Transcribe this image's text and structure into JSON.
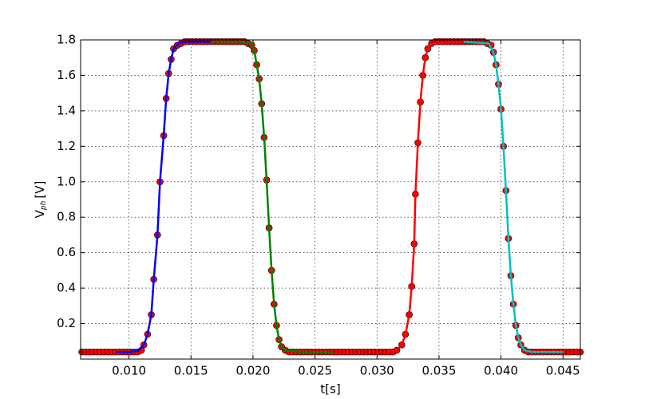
{
  "chart_data": {
    "type": "line",
    "xlabel": "t[s]",
    "ylabel": {
      "text": "V",
      "subscript": "ph",
      "suffix": "[V]"
    },
    "xlim": [
      0.0061,
      0.0464
    ],
    "ylim": [
      0,
      1.8
    ],
    "xticks": [
      {
        "value": 0.01,
        "label": "0.010"
      },
      {
        "value": 0.015,
        "label": "0.015"
      },
      {
        "value": 0.02,
        "label": "0.020"
      },
      {
        "value": 0.025,
        "label": "0.025"
      },
      {
        "value": 0.03,
        "label": "0.030"
      },
      {
        "value": 0.035,
        "label": "0.035"
      },
      {
        "value": 0.04,
        "label": "0.040"
      },
      {
        "value": 0.045,
        "label": "0.045"
      }
    ],
    "yticks": [
      0.2,
      0.4,
      0.6,
      0.8,
      {
        "value": 1.0,
        "label": "1.0"
      },
      1.2,
      1.4,
      1.6,
      1.8
    ],
    "grid": true,
    "series": [
      {
        "style": "line",
        "color": "#0000ff",
        "x": [
          0.009,
          0.01,
          0.0108,
          0.0112,
          0.0115,
          0.0118,
          0.012,
          0.0123,
          0.0125,
          0.0128,
          0.013,
          0.0132,
          0.0134,
          0.0136,
          0.014,
          0.0145,
          0.0166
        ],
        "values": [
          0.04,
          0.04,
          0.05,
          0.08,
          0.14,
          0.25,
          0.45,
          0.7,
          1.0,
          1.26,
          1.47,
          1.61,
          1.69,
          1.75,
          1.78,
          1.79,
          1.79
        ]
      },
      {
        "style": "line",
        "color": "#008000",
        "x": [
          0.0166,
          0.019,
          0.0199,
          0.0201,
          0.0203,
          0.0205,
          0.0207,
          0.0209,
          0.0211,
          0.0213,
          0.0215,
          0.0217,
          0.0219,
          0.0221,
          0.0223,
          0.0226,
          0.024,
          0.0265
        ],
        "values": [
          1.79,
          1.79,
          1.78,
          1.74,
          1.66,
          1.58,
          1.44,
          1.25,
          1.01,
          0.74,
          0.5,
          0.31,
          0.19,
          0.11,
          0.07,
          0.05,
          0.04,
          0.04
        ]
      },
      {
        "style": "line",
        "color": "#ff0000",
        "x": [
          0.0308,
          0.0316,
          0.032,
          0.0323,
          0.0326,
          0.0328,
          0.033,
          0.0331,
          0.0333,
          0.0335,
          0.0337,
          0.0339,
          0.0341,
          0.0344,
          0.037
        ],
        "values": [
          0.04,
          0.05,
          0.08,
          0.14,
          0.25,
          0.41,
          0.65,
          0.93,
          1.22,
          1.45,
          1.6,
          1.7,
          1.75,
          1.78,
          1.79
        ]
      },
      {
        "style": "line",
        "color": "#00bfbf",
        "x": [
          0.037,
          0.039,
          0.0394,
          0.0396,
          0.0398,
          0.04,
          0.0402,
          0.0404,
          0.0406,
          0.0408,
          0.041,
          0.0412,
          0.0414,
          0.0416,
          0.0419,
          0.0425,
          0.045
        ],
        "values": [
          1.79,
          1.78,
          1.73,
          1.66,
          1.55,
          1.41,
          1.2,
          0.95,
          0.68,
          0.47,
          0.31,
          0.19,
          0.12,
          0.08,
          0.05,
          0.04,
          0.04
        ]
      },
      {
        "style": "markers",
        "color": "#ff0000",
        "x": [
          0.0062,
          0.0065,
          0.0068,
          0.0071,
          0.0074,
          0.0077,
          0.008,
          0.0083,
          0.0086,
          0.0089,
          0.0092,
          0.0095,
          0.0098,
          0.0101,
          0.0104,
          0.0107,
          0.011,
          0.0112,
          0.0115,
          0.0118,
          0.012,
          0.0123,
          0.0125,
          0.0128,
          0.013,
          0.0132,
          0.0134,
          0.0136,
          0.0139,
          0.0142,
          0.0145,
          0.0148,
          0.0151,
          0.0154,
          0.0157,
          0.016,
          0.0163,
          0.0166,
          0.0169,
          0.0172,
          0.0175,
          0.0178,
          0.0181,
          0.0184,
          0.0187,
          0.019,
          0.0193,
          0.0196,
          0.0199,
          0.0201,
          0.0203,
          0.0205,
          0.0207,
          0.0209,
          0.0211,
          0.0213,
          0.0215,
          0.0217,
          0.0219,
          0.0221,
          0.0223,
          0.0226,
          0.0229,
          0.0232,
          0.0235,
          0.0238,
          0.0241,
          0.0244,
          0.0247,
          0.025,
          0.0253,
          0.0256,
          0.0259,
          0.0262,
          0.0265,
          0.0268,
          0.0271,
          0.0274,
          0.0277,
          0.028,
          0.0283,
          0.0286,
          0.0289,
          0.0292,
          0.0295,
          0.0298,
          0.0301,
          0.0304,
          0.0307,
          0.031,
          0.0313,
          0.0316,
          0.032,
          0.0323,
          0.0326,
          0.0328,
          0.033,
          0.0331,
          0.0333,
          0.0335,
          0.0337,
          0.0339,
          0.0341,
          0.0344,
          0.0347,
          0.035,
          0.0353,
          0.0356,
          0.0359,
          0.0362,
          0.0365,
          0.0368,
          0.0371,
          0.0374,
          0.0377,
          0.038,
          0.0383,
          0.0386,
          0.0389,
          0.0392,
          0.0394,
          0.0396,
          0.0398,
          0.04,
          0.0402,
          0.0404,
          0.0406,
          0.0408,
          0.041,
          0.0412,
          0.0414,
          0.0416,
          0.0419,
          0.0422,
          0.0425,
          0.0428,
          0.0431,
          0.0434,
          0.0437,
          0.044,
          0.0443,
          0.0446,
          0.0449,
          0.0452,
          0.0455,
          0.0458,
          0.0461,
          0.0464
        ],
        "values": [
          0.04,
          0.04,
          0.04,
          0.04,
          0.04,
          0.04,
          0.04,
          0.04,
          0.04,
          0.04,
          0.04,
          0.04,
          0.04,
          0.04,
          0.04,
          0.04,
          0.05,
          0.08,
          0.14,
          0.25,
          0.45,
          0.7,
          1.0,
          1.26,
          1.47,
          1.61,
          1.69,
          1.75,
          1.77,
          1.78,
          1.79,
          1.79,
          1.79,
          1.79,
          1.79,
          1.79,
          1.79,
          1.79,
          1.79,
          1.79,
          1.79,
          1.79,
          1.79,
          1.79,
          1.79,
          1.79,
          1.79,
          1.78,
          1.77,
          1.74,
          1.66,
          1.58,
          1.44,
          1.25,
          1.01,
          0.74,
          0.5,
          0.31,
          0.19,
          0.11,
          0.07,
          0.05,
          0.04,
          0.04,
          0.04,
          0.04,
          0.04,
          0.04,
          0.04,
          0.04,
          0.04,
          0.04,
          0.04,
          0.04,
          0.04,
          0.04,
          0.04,
          0.04,
          0.04,
          0.04,
          0.04,
          0.04,
          0.04,
          0.04,
          0.04,
          0.04,
          0.04,
          0.04,
          0.04,
          0.04,
          0.04,
          0.05,
          0.08,
          0.14,
          0.25,
          0.41,
          0.65,
          0.93,
          1.22,
          1.45,
          1.6,
          1.7,
          1.75,
          1.78,
          1.79,
          1.79,
          1.79,
          1.79,
          1.79,
          1.79,
          1.79,
          1.79,
          1.79,
          1.79,
          1.79,
          1.79,
          1.79,
          1.79,
          1.78,
          1.77,
          1.73,
          1.66,
          1.55,
          1.41,
          1.2,
          0.95,
          0.68,
          0.47,
          0.31,
          0.19,
          0.12,
          0.08,
          0.05,
          0.04,
          0.04,
          0.04,
          0.04,
          0.04,
          0.04,
          0.04,
          0.04,
          0.04,
          0.04,
          0.04,
          0.04,
          0.04,
          0.04,
          0.04
        ]
      }
    ]
  }
}
